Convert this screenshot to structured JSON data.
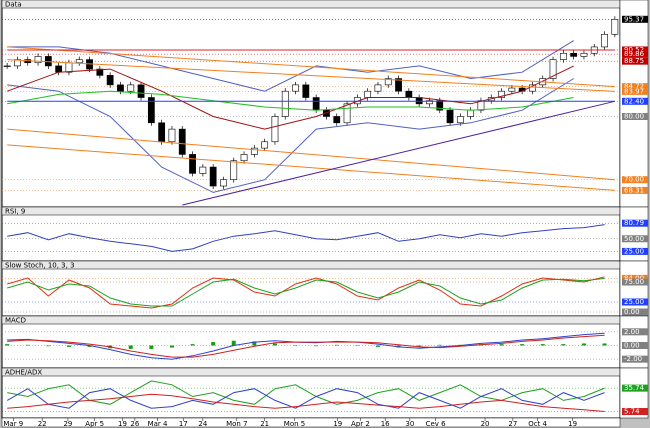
{
  "chart_data": [
    {
      "type": "candlestick",
      "title": "Data",
      "ylim": [
        66,
        97
      ],
      "values": [
        88,
        89,
        88.5,
        89.5,
        88,
        87,
        88.5,
        89,
        87.5,
        86.5,
        85,
        84,
        85,
        83,
        79,
        76,
        78,
        74,
        71,
        72,
        69,
        70,
        73,
        74,
        75,
        76,
        80,
        84,
        85,
        83,
        81,
        80,
        79,
        82,
        83,
        84,
        85,
        86,
        84,
        83,
        82,
        82.5,
        81,
        79,
        80,
        81,
        82.5,
        83,
        84,
        84.5,
        84,
        85,
        86,
        89,
        90,
        89.5,
        90,
        91,
        93,
        95.37
      ],
      "up_color": "#ffffff",
      "down_color": "#000000",
      "series": [
        {
          "color": "#5060c0",
          "x": [
            0,
            5,
            10,
            15,
            20,
            25,
            30,
            35,
            40,
            45,
            50,
            55
          ],
          "values": [
            91,
            91,
            90,
            88,
            86,
            84,
            88,
            87,
            88,
            86,
            87,
            92
          ]
        },
        {
          "color": "#5060c0",
          "x": [
            0,
            5,
            10,
            15,
            20,
            25,
            30,
            35,
            40,
            45,
            50,
            55
          ],
          "values": [
            85,
            84,
            80,
            72,
            68,
            70,
            78,
            79,
            78,
            79,
            81,
            86
          ]
        },
        {
          "color": "#a01010",
          "x": [
            0,
            5,
            10,
            15,
            20,
            25,
            30,
            35,
            40,
            45,
            50,
            55
          ],
          "values": [
            84,
            87,
            87.5,
            84,
            80,
            78,
            80,
            83,
            83,
            82,
            84,
            88
          ]
        },
        {
          "color": "#20c020",
          "x": [
            0,
            5,
            10,
            15,
            20,
            25,
            30,
            35,
            40,
            45,
            50,
            55
          ],
          "values": [
            82,
            83.5,
            84,
            83.5,
            82.5,
            81.5,
            81,
            81.5,
            81.5,
            81,
            81.5,
            83
          ]
        },
        {
          "color": "#f08020",
          "x": [
            0,
            59
          ],
          "values": [
            91,
            84.72
          ]
        },
        {
          "color": "#f08020",
          "x": [
            0,
            59
          ],
          "values": [
            89,
            83.97
          ]
        },
        {
          "color": "#f08020",
          "x": [
            0,
            59
          ],
          "values": [
            78,
            70
          ]
        },
        {
          "color": "#f08020",
          "x": [
            0,
            59
          ],
          "values": [
            75.5,
            68.31
          ]
        },
        {
          "color": "#5020a0",
          "x": [
            17,
            59
          ],
          "values": [
            66,
            82.4
          ]
        },
        {
          "color": "#2040ff",
          "x": [
            0,
            59
          ],
          "values": [
            82.4,
            82.4
          ]
        },
        {
          "color": "#e02020",
          "x": [
            0,
            59
          ],
          "values": [
            90.52,
            90.52
          ]
        }
      ],
      "yticks": [
        95.37,
        90.52,
        89.86,
        88.75,
        84.72,
        83.97,
        {
          "value": 82.4,
          "label": "82.40"
        },
        {
          "value": 80,
          "label": "80.00"
        },
        {
          "value": 70,
          "label": "70.00"
        },
        68.31
      ],
      "ytick_colors": [
        "#000000",
        "#c00000",
        "#c00000",
        "#c00000",
        "#f08020",
        "#f08020",
        "#2040ff",
        "#808080",
        "#f08020",
        "#f08020"
      ]
    },
    {
      "type": "line",
      "title": "RSI, 9",
      "ylim": [
        10,
        95
      ],
      "x": [
        0,
        2,
        4,
        6,
        8,
        10,
        12,
        14,
        16,
        18,
        20,
        22,
        24,
        26,
        28,
        30,
        32,
        34,
        36,
        38,
        40,
        42,
        44,
        46,
        48,
        50,
        52,
        54,
        56,
        58
      ],
      "series": [
        {
          "color": "#3040c0",
          "values": [
            55,
            62,
            48,
            60,
            52,
            45,
            40,
            35,
            25,
            30,
            45,
            55,
            60,
            66,
            58,
            50,
            48,
            55,
            62,
            45,
            50,
            58,
            52,
            60,
            55,
            62,
            66,
            70,
            72,
            78
          ]
        }
      ],
      "yticks": [
        80.79,
        {
          "value": 50,
          "label": "50.00"
        },
        {
          "value": 25,
          "label": "25.00"
        }
      ],
      "ytick_colors": [
        "#2040ff",
        "#808080",
        "#2040ff"
      ]
    },
    {
      "type": "line",
      "title": "Slow Stoch, 10, 3, 3",
      "ylim": [
        -5,
        105
      ],
      "x": [
        0,
        2,
        4,
        6,
        8,
        10,
        12,
        14,
        16,
        18,
        20,
        22,
        24,
        26,
        28,
        30,
        32,
        34,
        36,
        38,
        40,
        42,
        44,
        46,
        48,
        50,
        52,
        54,
        56,
        58
      ],
      "series": [
        {
          "color": "#e03010",
          "values": [
            70,
            85,
            40,
            80,
            60,
            20,
            15,
            10,
            20,
            60,
            85,
            80,
            50,
            40,
            70,
            85,
            70,
            40,
            30,
            60,
            80,
            55,
            20,
            15,
            40,
            70,
            85,
            80,
            75,
            88
          ]
        },
        {
          "color": "#20a020",
          "values": [
            60,
            75,
            55,
            70,
            65,
            35,
            20,
            15,
            15,
            45,
            75,
            82,
            60,
            45,
            60,
            80,
            75,
            50,
            35,
            50,
            75,
            65,
            35,
            20,
            30,
            60,
            80,
            82,
            78,
            84
          ]
        }
      ],
      "yticks": [
        {
          "value": 84,
          "label": "84.00"
        },
        {
          "value": 75,
          "label": "75.00"
        },
        {
          "value": 25,
          "label": "25.00"
        },
        {
          "value": 0,
          "label": "0.00"
        }
      ],
      "ytick_colors": [
        "#f08020",
        "#808080",
        "#2040ff",
        "#808080"
      ]
    },
    {
      "type": "line",
      "title": "MACD",
      "ylim": [
        -3,
        3
      ],
      "x": [
        0,
        2,
        4,
        6,
        8,
        10,
        12,
        14,
        16,
        18,
        20,
        22,
        24,
        26,
        28,
        30,
        32,
        34,
        36,
        38,
        40,
        42,
        44,
        46,
        48,
        50,
        52,
        54,
        56,
        58
      ],
      "series": [
        {
          "color": "#10a010",
          "type": "bar",
          "values": [
            0.2,
            0.1,
            -0.1,
            -0.2,
            -0.2,
            -0.4,
            -0.5,
            -0.5,
            -0.3,
            0.2,
            0.5,
            0.7,
            0.6,
            0.3,
            0,
            -0.1,
            0.1,
            0,
            -0.2,
            -0.3,
            -0.2,
            0.1,
            0.1,
            0.2,
            0.2,
            0.2,
            0.2,
            0.2,
            0.3,
            0.3
          ]
        },
        {
          "color": "#3040d0",
          "values": [
            0.8,
            0.9,
            0.6,
            0.3,
            0.0,
            -0.6,
            -1.3,
            -1.8,
            -2.0,
            -1.5,
            -0.8,
            0,
            0.5,
            0.7,
            0.5,
            0.4,
            0.6,
            0.5,
            0.2,
            -0.2,
            -0.4,
            -0.2,
            0,
            0.3,
            0.5,
            0.8,
            1.0,
            1.3,
            1.6,
            1.8
          ]
        },
        {
          "color": "#d02020",
          "values": [
            0.6,
            0.8,
            0.7,
            0.5,
            0.2,
            -0.2,
            -0.8,
            -1.3,
            -1.7,
            -1.7,
            -1.3,
            -0.7,
            -0.1,
            0.4,
            0.5,
            0.5,
            0.5,
            0.5,
            0.4,
            0.1,
            -0.2,
            -0.3,
            -0.1,
            0.1,
            0.3,
            0.6,
            0.8,
            1.1,
            1.3,
            1.5
          ]
        }
      ],
      "yticks": [
        {
          "value": 2,
          "label": "2.00"
        },
        {
          "value": 0,
          "label": "0.00"
        },
        {
          "value": -2,
          "label": "-2.00"
        }
      ],
      "ytick_colors": [
        "#808080",
        "#808080",
        "#808080"
      ]
    },
    {
      "type": "line",
      "title": "ADHE/ADX",
      "ylim": [
        0,
        50
      ],
      "x": [
        0,
        2,
        4,
        6,
        8,
        10,
        12,
        14,
        16,
        18,
        20,
        22,
        24,
        26,
        28,
        30,
        32,
        34,
        36,
        38,
        40,
        42,
        44,
        46,
        48,
        50,
        52,
        54,
        56,
        58
      ],
      "series": [
        {
          "color": "#20a020",
          "values": [
            30,
            25,
            35,
            40,
            20,
            15,
            30,
            45,
            40,
            25,
            30,
            20,
            15,
            35,
            40,
            25,
            15,
            20,
            30,
            35,
            20,
            30,
            40,
            25,
            20,
            30,
            35,
            20,
            25,
            35.74
          ]
        },
        {
          "color": "#3040d0",
          "values": [
            20,
            35,
            15,
            10,
            30,
            35,
            20,
            10,
            12,
            20,
            15,
            30,
            35,
            20,
            10,
            25,
            35,
            30,
            15,
            10,
            30,
            20,
            10,
            25,
            35,
            20,
            15,
            30,
            20,
            30
          ]
        },
        {
          "color": "#d02020",
          "values": [
            10,
            12,
            15,
            18,
            20,
            22,
            25,
            28,
            26,
            22,
            18,
            15,
            12,
            10,
            12,
            15,
            18,
            16,
            14,
            12,
            10,
            12,
            15,
            18,
            20,
            16,
            12,
            10,
            8,
            5.74
          ]
        }
      ],
      "yticks": [
        35.74,
        5.74
      ],
      "ytick_colors": [
        "#20a020",
        "#d02020"
      ],
      "xticks": [
        {
          "value": 0.6,
          "label": "Mar 9"
        },
        {
          "value": 3.4,
          "label": "22"
        },
        {
          "value": 5.9,
          "label": "29"
        },
        {
          "value": 8.5,
          "label": "Apr 5"
        },
        {
          "value": 11.2,
          "label": "19"
        },
        {
          "value": 12.4,
          "label": "26"
        },
        {
          "value": 14.6,
          "label": "Mar 4"
        },
        {
          "value": 17.1,
          "label": "17"
        },
        {
          "value": 19,
          "label": "24"
        },
        {
          "value": 22.3,
          "label": "Mon 7"
        },
        {
          "value": 25,
          "label": "21"
        },
        {
          "value": 27.9,
          "label": "Mon 5"
        },
        {
          "value": 32.1,
          "label": "19"
        },
        {
          "value": 34.3,
          "label": "Apr 2"
        },
        {
          "value": 36.7,
          "label": "16"
        },
        {
          "value": 39.1,
          "label": "30"
        },
        {
          "value": 41.6,
          "label": "Cev 6"
        },
        {
          "value": 46.4,
          "label": "20"
        },
        {
          "value": 49.1,
          "label": "27"
        },
        {
          "value": 51.5,
          "label": "Oct 4"
        },
        {
          "value": 54.9,
          "label": "19"
        }
      ]
    }
  ]
}
